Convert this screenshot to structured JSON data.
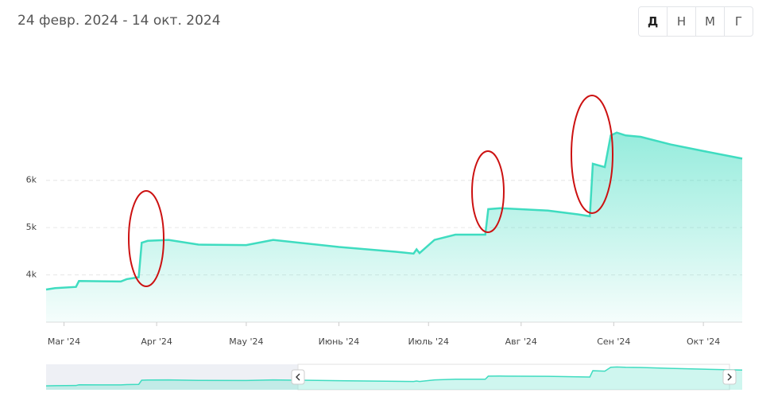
{
  "chart_data": {
    "type": "area",
    "title": "24 февр. 2024 - 14 окт. 2024",
    "x": [
      "2024-02-24",
      "2024-02-27",
      "2024-03-05",
      "2024-03-06",
      "2024-03-20",
      "2024-03-22",
      "2024-03-26",
      "2024-03-27",
      "2024-03-29",
      "2024-04-05",
      "2024-04-15",
      "2024-05-01",
      "2024-05-10",
      "2024-06-01",
      "2024-06-20",
      "2024-06-26",
      "2024-06-27",
      "2024-06-28",
      "2024-07-03",
      "2024-07-10",
      "2024-07-20",
      "2024-07-21",
      "2024-07-25",
      "2024-08-10",
      "2024-08-20",
      "2024-08-24",
      "2024-08-25",
      "2024-08-29",
      "2024-08-31",
      "2024-09-02",
      "2024-09-05",
      "2024-09-10",
      "2024-09-20",
      "2024-10-01",
      "2024-10-14"
    ],
    "series": [
      {
        "color": "#3fdcc0",
        "values": [
          3690,
          3720,
          3745,
          3870,
          3860,
          3910,
          3950,
          4680,
          4720,
          4740,
          4640,
          4630,
          4740,
          4590,
          4490,
          4450,
          4540,
          4460,
          4740,
          4850,
          4850,
          5390,
          5410,
          5360,
          5280,
          5240,
          6350,
          6280,
          6950,
          7010,
          6950,
          6920,
          6760,
          6620,
          6460
        ]
      }
    ],
    "xlim": [
      "2024-02-24",
      "2024-10-14"
    ],
    "xticks": [
      {
        "value": "2024-03-01",
        "label": "Mar '24"
      },
      {
        "value": "2024-04-01",
        "label": "Apr '24"
      },
      {
        "value": "2024-05-01",
        "label": "May '24"
      },
      {
        "value": "2024-06-01",
        "label": "Июнь '24"
      },
      {
        "value": "2024-07-01",
        "label": "Июль '24"
      },
      {
        "value": "2024-08-01",
        "label": "Авг '24"
      },
      {
        "value": "2024-09-01",
        "label": "Сен '24"
      },
      {
        "value": "2024-10-01",
        "label": "Окт '24"
      }
    ],
    "ylim": [
      3000,
      7200
    ],
    "yticks": [
      {
        "value": 4000,
        "label": "4k"
      },
      {
        "value": 5000,
        "label": "5k"
      },
      {
        "value": 6000,
        "label": "6k"
      }
    ],
    "grid": true
  },
  "range_buttons": [
    "Д",
    "Н",
    "М",
    "Г"
  ]
}
